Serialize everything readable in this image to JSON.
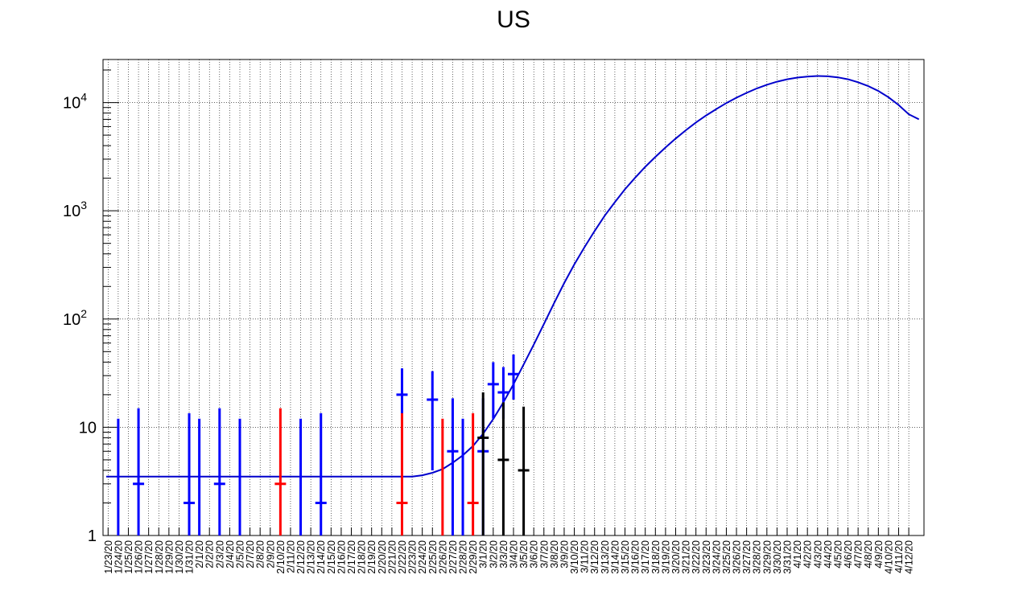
{
  "chart_data": {
    "type": "scatter",
    "title": "US",
    "xlabel": "",
    "ylabel": "",
    "y_scale": "log",
    "ylim": [
      1,
      25000
    ],
    "grid": true,
    "legend": "none",
    "y_tick_labels": [
      {
        "value": 1,
        "base": "1",
        "exp": ""
      },
      {
        "value": 10,
        "base": "10",
        "exp": ""
      },
      {
        "value": 100,
        "base": "10",
        "exp": "2"
      },
      {
        "value": 1000,
        "base": "10",
        "exp": "3"
      },
      {
        "value": 10000,
        "base": "10",
        "exp": "4"
      }
    ],
    "x_categories": [
      "1/23/20",
      "1/24/20",
      "1/25/20",
      "1/26/20",
      "1/27/20",
      "1/28/20",
      "1/29/20",
      "1/30/20",
      "1/31/20",
      "2/1/20",
      "2/2/20",
      "2/3/20",
      "2/4/20",
      "2/5/20",
      "2/7/20",
      "2/8/20",
      "2/9/20",
      "2/10/20",
      "2/11/20",
      "2/12/20",
      "2/13/20",
      "2/14/20",
      "2/15/20",
      "2/16/20",
      "2/17/20",
      "2/18/20",
      "2/19/20",
      "2/20/20",
      "2/21/20",
      "2/22/20",
      "2/23/20",
      "2/24/20",
      "2/25/20",
      "2/26/20",
      "2/27/20",
      "2/28/20",
      "2/29/20",
      "3/1/20",
      "3/2/20",
      "3/3/20",
      "3/4/20",
      "3/5/20",
      "3/6/20",
      "3/7/20",
      "3/8/20",
      "3/9/20",
      "3/10/20",
      "3/11/20",
      "3/12/20",
      "3/13/20",
      "3/14/20",
      "3/15/20",
      "3/16/20",
      "3/17/20",
      "3/18/20",
      "3/19/20",
      "3/20/20",
      "3/21/20",
      "3/22/20",
      "3/23/20",
      "3/24/20",
      "3/25/20",
      "3/26/20",
      "3/27/20",
      "3/28/20",
      "3/29/20",
      "3/30/20",
      "3/31/20",
      "4/1/20",
      "4/2/20",
      "4/3/20",
      "4/4/20",
      "4/5/20",
      "4/6/20",
      "4/7/20",
      "4/8/20",
      "4/9/20",
      "4/10/20",
      "4/11/20",
      "4/12/20"
    ],
    "colors": {
      "blue": "#0000ff",
      "red": "#ff0000",
      "black": "#000000",
      "fit": "#0000cc"
    },
    "series": [
      {
        "color": "blue",
        "points": [
          {
            "x": 1,
            "y": 1,
            "err_low": 0,
            "err_high": 12
          },
          {
            "x": 3,
            "y": 3,
            "err_low": 1,
            "err_high": 15
          },
          {
            "x": 8,
            "y": 2,
            "err_low": 1,
            "err_high": 13.5
          },
          {
            "x": 9,
            "y": 1,
            "err_low": 0,
            "err_high": 12
          },
          {
            "x": 11,
            "y": 3,
            "err_low": 1,
            "err_high": 15
          },
          {
            "x": 13,
            "y": 1,
            "err_low": 0,
            "err_high": 12
          },
          {
            "x": 19,
            "y": 1,
            "err_low": 0,
            "err_high": 12
          },
          {
            "x": 21,
            "y": 2,
            "err_low": 1,
            "err_high": 13.5
          },
          {
            "x": 29,
            "y": 20,
            "err_low": 4,
            "err_high": 35
          },
          {
            "x": 32,
            "y": 18,
            "err_low": 4,
            "err_high": 33
          },
          {
            "x": 34,
            "y": 6,
            "err_low": 1,
            "err_high": 18.5
          },
          {
            "x": 35,
            "y": 1,
            "err_low": 0,
            "err_high": 12
          },
          {
            "x": 37,
            "y": 6,
            "err_low": 1,
            "err_high": 18.5
          },
          {
            "x": 38,
            "y": 25,
            "err_low": 12,
            "err_high": 40
          },
          {
            "x": 39,
            "y": 21,
            "err_low": 12,
            "err_high": 36
          },
          {
            "x": 40,
            "y": 31,
            "err_low": 18,
            "err_high": 47
          }
        ]
      },
      {
        "color": "red",
        "points": [
          {
            "x": 17,
            "y": 3,
            "err_low": 1,
            "err_high": 15
          },
          {
            "x": 29,
            "y": 2,
            "err_low": 1,
            "err_high": 13.5
          },
          {
            "x": 33,
            "y": 1,
            "err_low": 0,
            "err_high": 12
          },
          {
            "x": 36,
            "y": 2,
            "err_low": 1,
            "err_high": 13.5
          }
        ]
      },
      {
        "color": "black",
        "points": [
          {
            "x": 37,
            "y": 8,
            "err_low": 1,
            "err_high": 21
          },
          {
            "x": 39,
            "y": 5,
            "err_low": 1,
            "err_high": 17
          },
          {
            "x": 41,
            "y": 4,
            "err_low": 1,
            "err_high": 15.5
          }
        ]
      }
    ],
    "fit_curve": [
      [
        0,
        3.5
      ],
      [
        30,
        3.5
      ],
      [
        31,
        3.6
      ],
      [
        32,
        3.8
      ],
      [
        33,
        4.1
      ],
      [
        34,
        4.7
      ],
      [
        35,
        5.5
      ],
      [
        36,
        6.7
      ],
      [
        37,
        8.7
      ],
      [
        38,
        11.9
      ],
      [
        39,
        17
      ],
      [
        40,
        25
      ],
      [
        41,
        38
      ],
      [
        42,
        58
      ],
      [
        43,
        90
      ],
      [
        44,
        140
      ],
      [
        45,
        215
      ],
      [
        46,
        320
      ],
      [
        47,
        460
      ],
      [
        48,
        650
      ],
      [
        49,
        900
      ],
      [
        50,
        1200
      ],
      [
        51,
        1580
      ],
      [
        52,
        2020
      ],
      [
        53,
        2550
      ],
      [
        54,
        3150
      ],
      [
        55,
        3850
      ],
      [
        56,
        4650
      ],
      [
        57,
        5550
      ],
      [
        58,
        6550
      ],
      [
        59,
        7600
      ],
      [
        60,
        8700
      ],
      [
        61,
        9900
      ],
      [
        62,
        11100
      ],
      [
        63,
        12300
      ],
      [
        64,
        13500
      ],
      [
        65,
        14600
      ],
      [
        66,
        15600
      ],
      [
        67,
        16400
      ],
      [
        68,
        17000
      ],
      [
        69,
        17400
      ],
      [
        70,
        17600
      ],
      [
        71,
        17500
      ],
      [
        72,
        17100
      ],
      [
        73,
        16400
      ],
      [
        74,
        15400
      ],
      [
        75,
        14200
      ],
      [
        76,
        12800
      ],
      [
        77,
        11200
      ],
      [
        78,
        9500
      ],
      [
        79,
        7800
      ],
      [
        80,
        7000
      ]
    ]
  }
}
